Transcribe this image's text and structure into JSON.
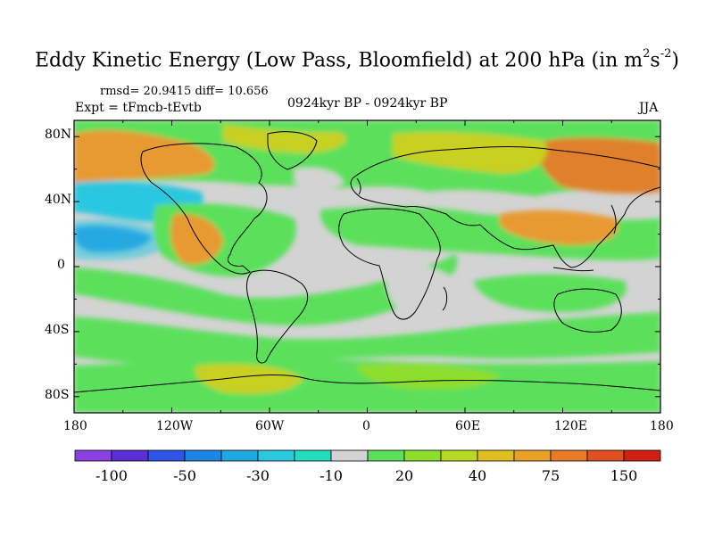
{
  "title": {
    "main": "Eddy Kinetic Energy (Low Pass, Bloomfield) at 200 hPa (in m",
    "sup1": "2",
    "mid": "s",
    "sup2": "-2",
    "end": ")"
  },
  "stats": {
    "rmsd": "rmsd= 20.9415 diff= 10.656",
    "expt": "Expt = tFmcb-tEvtb",
    "period": "0924kyr BP - 0924kyr BP",
    "season": "JJA"
  },
  "axes": {
    "lat_labels": [
      "80N",
      "40N",
      "0",
      "40S",
      "80S"
    ],
    "lon_labels": [
      "180",
      "120W",
      "60W",
      "0",
      "60E",
      "120E",
      "180"
    ]
  },
  "colorbar": {
    "colors": [
      "#8a3fe0",
      "#5a2fd8",
      "#2f55e6",
      "#1e84e6",
      "#20a8e0",
      "#2cc8e0",
      "#25dcc0",
      "#d3d3d3",
      "#5ce05c",
      "#8ede2e",
      "#b8d824",
      "#e0c020",
      "#e8a028",
      "#e87a28",
      "#e05020",
      "#d02010"
    ],
    "labels": [
      "-100",
      "-50",
      "-30",
      "-10",
      "20",
      "40",
      "75",
      "150"
    ]
  },
  "colors": {
    "neutral": "#d3d3d3",
    "green": "#5ce05c",
    "lightgreen": "#8ede2e",
    "yellow": "#c8d020",
    "orange": "#e89a30",
    "darkorange": "#e0802a",
    "cyan": "#2cc8e0",
    "blue": "#1e84e6"
  }
}
